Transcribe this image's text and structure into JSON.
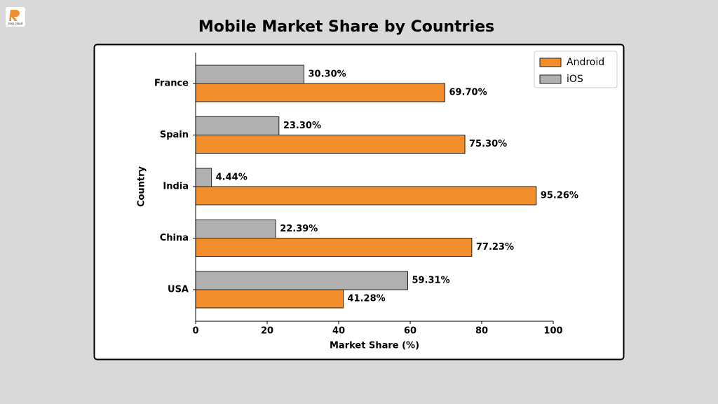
{
  "logo": "ross cloud",
  "chart_data": {
    "type": "barh",
    "title": "Mobile Market Share by Countries",
    "xlabel": "Market Share (%)",
    "ylabel": "Country",
    "categories": [
      "USA",
      "China",
      "India",
      "Spain",
      "France"
    ],
    "series": [
      {
        "name": "Android",
        "color": "#f28e2b",
        "values": [
          41.28,
          77.23,
          95.26,
          75.3,
          69.7
        ],
        "value_labels": [
          "41.28%",
          "77.23%",
          "95.26%",
          "75.30%",
          "69.70%"
        ]
      },
      {
        "name": "iOS",
        "color": "#b0b0b0",
        "values": [
          59.31,
          22.39,
          4.44,
          23.3,
          30.3
        ],
        "value_labels": [
          "59.31%",
          "22.39%",
          "4.44%",
          "23.30%",
          "30.30%"
        ]
      }
    ],
    "xlim": [
      0,
      100
    ],
    "xticks": [
      0,
      20,
      40,
      60,
      80,
      100
    ],
    "legend": "upper right"
  }
}
